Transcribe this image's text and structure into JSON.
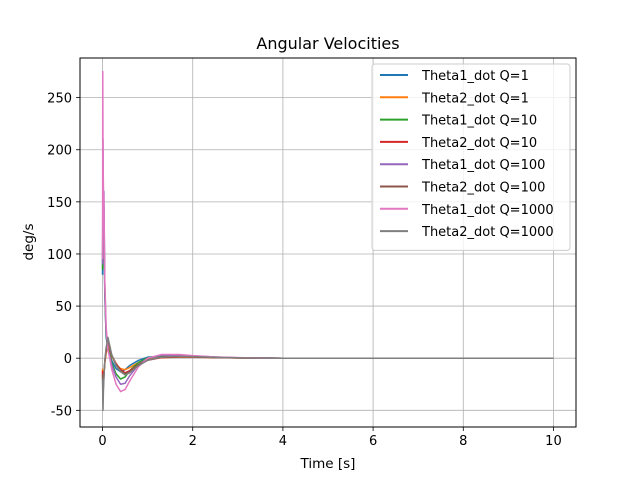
{
  "chart_data": {
    "type": "line",
    "title": "Angular Velocities",
    "xlabel": "Time [s]",
    "ylabel": "deg/s",
    "xlim": [
      -0.5,
      10.5
    ],
    "ylim": [
      -66,
      288
    ],
    "xticks": [
      0,
      2,
      4,
      6,
      8,
      10
    ],
    "yticks": [
      -50,
      0,
      50,
      100,
      150,
      200,
      250
    ],
    "grid": true,
    "legend_position": "top-right",
    "series": [
      {
        "name": "Theta1_dot Q=1",
        "color": "#1f77b4",
        "x": [
          0,
          0.01,
          0.02,
          0.03,
          0.05,
          0.08,
          0.12,
          0.16,
          0.2,
          0.3,
          0.4,
          0.5,
          0.6,
          0.8,
          1.0,
          1.3,
          1.7,
          2.0,
          2.5,
          3,
          4,
          6,
          8,
          10
        ],
        "y": [
          80,
          150,
          115,
          130,
          60,
          20,
          10,
          5,
          -2,
          -10,
          -13,
          -11,
          -7,
          -2,
          1,
          2,
          2,
          1.5,
          0.8,
          0.3,
          0,
          0,
          0,
          0
        ]
      },
      {
        "name": "Theta2_dot Q=1",
        "color": "#ff7f0e",
        "x": [
          0,
          0.01,
          0.02,
          0.03,
          0.05,
          0.08,
          0.12,
          0.16,
          0.2,
          0.3,
          0.4,
          0.5,
          0.6,
          0.8,
          1.0,
          1.3,
          1.7,
          2.0,
          2.5,
          3,
          4,
          6,
          8,
          10
        ],
        "y": [
          -10,
          -30,
          -20,
          -15,
          -5,
          5,
          12,
          8,
          2,
          -6,
          -10,
          -11,
          -9,
          -4,
          -1,
          0.5,
          1,
          1,
          0.6,
          0.2,
          0,
          0,
          0,
          0
        ]
      },
      {
        "name": "Theta1_dot Q=10",
        "color": "#2ca02c",
        "x": [
          0,
          0.01,
          0.02,
          0.03,
          0.05,
          0.08,
          0.12,
          0.16,
          0.2,
          0.3,
          0.4,
          0.5,
          0.6,
          0.8,
          1.0,
          1.3,
          1.7,
          2.0,
          2.5,
          3,
          4,
          6,
          8,
          10
        ],
        "y": [
          85,
          170,
          125,
          145,
          65,
          22,
          10,
          4,
          -4,
          -15,
          -20,
          -18,
          -12,
          -4,
          0.5,
          2.5,
          2.5,
          2,
          1,
          0.4,
          0,
          0,
          0,
          0
        ]
      },
      {
        "name": "Theta2_dot Q=10",
        "color": "#d62728",
        "x": [
          0,
          0.01,
          0.02,
          0.03,
          0.05,
          0.08,
          0.12,
          0.16,
          0.2,
          0.3,
          0.4,
          0.5,
          0.6,
          0.8,
          1.0,
          1.3,
          1.7,
          2.0,
          2.5,
          3,
          4,
          6,
          8,
          10
        ],
        "y": [
          -12,
          -35,
          -22,
          -16,
          -4,
          7,
          15,
          10,
          3,
          -5,
          -11,
          -14,
          -12,
          -6,
          -2,
          0.5,
          1.2,
          1.2,
          0.7,
          0.3,
          0,
          0,
          0,
          0
        ]
      },
      {
        "name": "Theta1_dot Q=100",
        "color": "#9467bd",
        "x": [
          0,
          0.01,
          0.02,
          0.03,
          0.05,
          0.08,
          0.12,
          0.16,
          0.2,
          0.3,
          0.4,
          0.5,
          0.6,
          0.8,
          1.0,
          1.3,
          1.7,
          2.0,
          2.5,
          3,
          4,
          6,
          8,
          10
        ],
        "y": [
          90,
          210,
          140,
          160,
          70,
          25,
          8,
          2,
          -6,
          -18,
          -25,
          -24,
          -17,
          -6,
          0,
          3,
          3,
          2.2,
          1.1,
          0.4,
          0,
          0,
          0,
          0
        ]
      },
      {
        "name": "Theta2_dot Q=100",
        "color": "#8c564b",
        "x": [
          0,
          0.01,
          0.02,
          0.03,
          0.05,
          0.08,
          0.12,
          0.16,
          0.2,
          0.3,
          0.4,
          0.5,
          0.6,
          0.8,
          1.0,
          1.3,
          1.7,
          2.0,
          2.5,
          3,
          4,
          6,
          8,
          10
        ],
        "y": [
          -15,
          -40,
          -25,
          -18,
          -3,
          9,
          17,
          11,
          3,
          -6,
          -12,
          -15,
          -13,
          -6,
          -1.5,
          1,
          1.5,
          1.3,
          0.7,
          0.3,
          0,
          0,
          0,
          0
        ]
      },
      {
        "name": "Theta1_dot Q=1000",
        "color": "#e377c2",
        "x": [
          0,
          0.005,
          0.01,
          0.02,
          0.03,
          0.05,
          0.08,
          0.12,
          0.16,
          0.2,
          0.3,
          0.4,
          0.5,
          0.6,
          0.8,
          1.0,
          1.3,
          1.7,
          2.0,
          2.5,
          3,
          4,
          6,
          8,
          10
        ],
        "y": [
          95,
          275,
          200,
          160,
          150,
          75,
          30,
          8,
          0,
          -10,
          -25,
          -32,
          -30,
          -22,
          -8,
          0,
          3.5,
          3.5,
          2.5,
          1.2,
          0.5,
          0,
          0,
          0,
          0
        ]
      },
      {
        "name": "Theta2_dot Q=1000",
        "color": "#7f7f7f",
        "x": [
          0,
          0.01,
          0.02,
          0.03,
          0.05,
          0.08,
          0.12,
          0.16,
          0.2,
          0.3,
          0.4,
          0.5,
          0.6,
          0.8,
          1.0,
          1.3,
          1.7,
          2.0,
          2.5,
          3,
          4,
          6,
          8,
          10
        ],
        "y": [
          -20,
          -50,
          -30,
          -20,
          -2,
          10,
          20,
          12,
          4,
          -7,
          -13,
          -16,
          -14,
          -7,
          -2,
          1,
          1.8,
          1.5,
          0.8,
          0.3,
          0,
          0,
          0,
          0
        ]
      }
    ]
  }
}
